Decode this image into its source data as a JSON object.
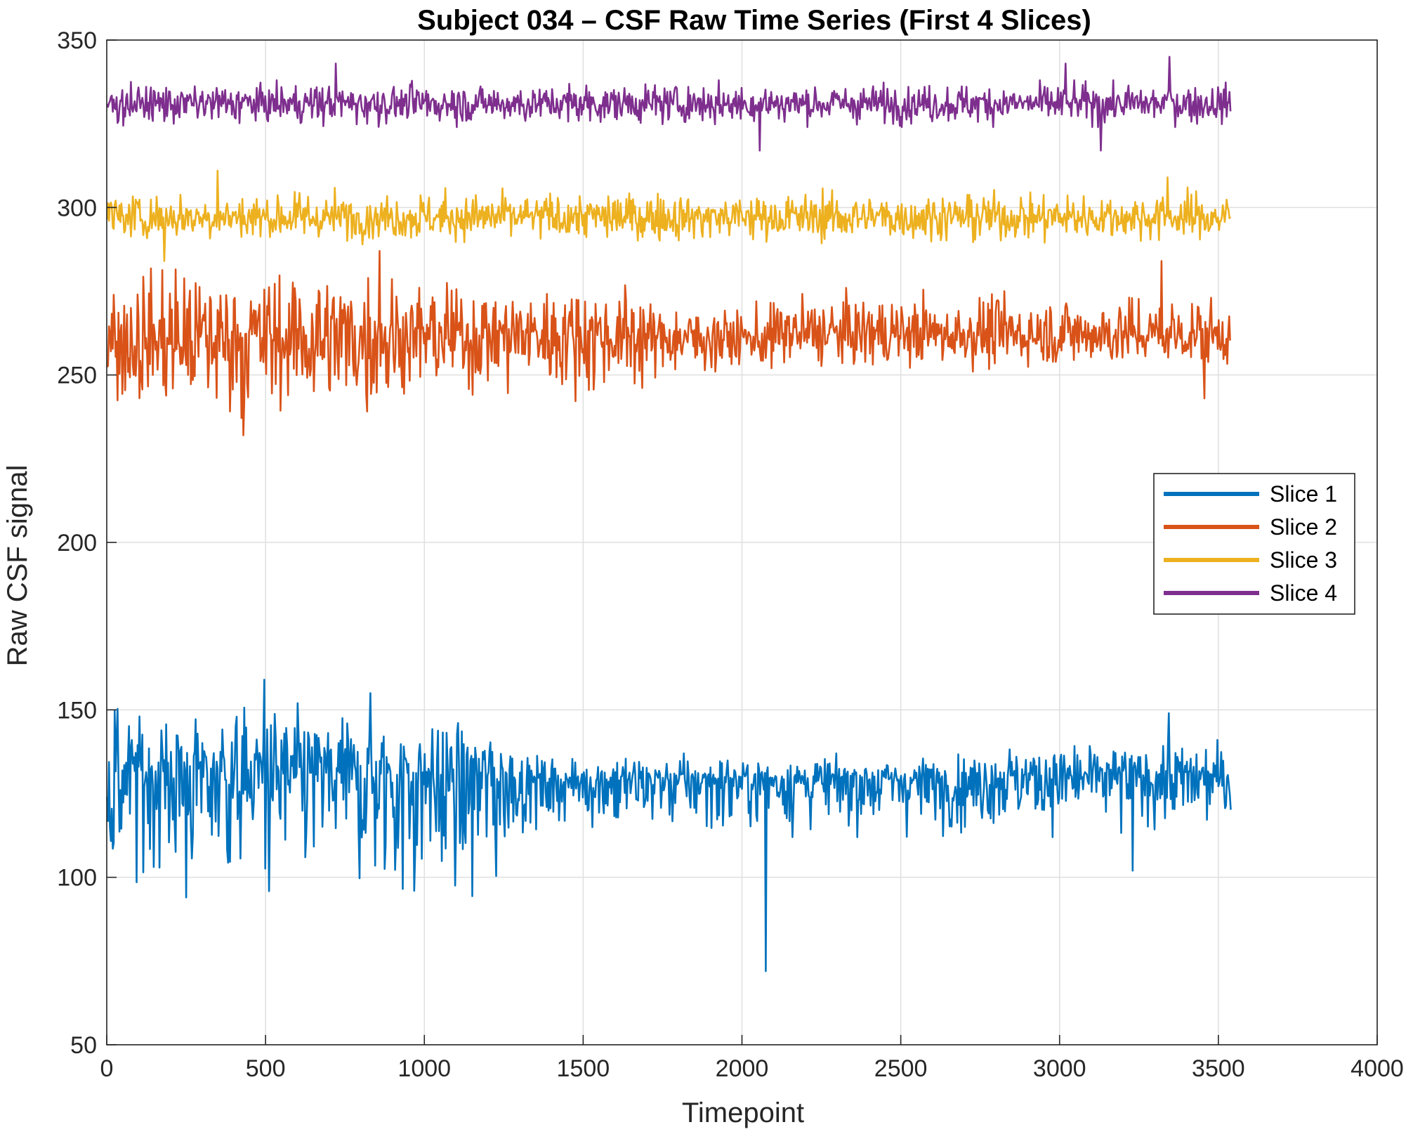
{
  "chart_data": {
    "type": "line",
    "title": "Subject 034 – CSF Raw Time Series (First 4 Slices)",
    "xlabel": "Timepoint",
    "ylabel": "Raw CSF signal",
    "xlim": [
      0,
      4000
    ],
    "ylim": [
      50,
      350
    ],
    "xticks": [
      0,
      500,
      1000,
      1500,
      2000,
      2500,
      3000,
      3500,
      4000
    ],
    "yticks": [
      50,
      100,
      150,
      200,
      250,
      300,
      350
    ],
    "x_range": [
      1,
      3540
    ],
    "grid": true,
    "legend_position": "right",
    "series": [
      {
        "name": "Slice 1",
        "color": "#0072BD",
        "segments": [
          {
            "x0": 1,
            "x1": 800,
            "mean": 131,
            "high": 152,
            "low": 94
          },
          {
            "x0": 800,
            "x1": 1280,
            "mean": 130,
            "high": 148,
            "low": 88
          },
          {
            "x0": 1280,
            "x1": 2750,
            "mean": 129,
            "high": 137,
            "low": 112
          },
          {
            "x0": 2750,
            "x1": 3540,
            "mean": 130,
            "high": 141,
            "low": 112
          }
        ],
        "spikes": [
          {
            "x": 250,
            "y": 94
          },
          {
            "x": 497,
            "y": 159
          },
          {
            "x": 830,
            "y": 155
          },
          {
            "x": 2075,
            "y": 72
          },
          {
            "x": 3230,
            "y": 102
          },
          {
            "x": 3345,
            "y": 149
          }
        ]
      },
      {
        "name": "Slice 2",
        "color": "#D95319",
        "segments": [
          {
            "x0": 1,
            "x1": 900,
            "mean": 261,
            "high": 285,
            "low": 235
          },
          {
            "x0": 900,
            "x1": 1700,
            "mean": 262,
            "high": 279,
            "low": 242
          },
          {
            "x0": 1700,
            "x1": 2100,
            "mean": 261,
            "high": 272,
            "low": 249
          },
          {
            "x0": 2100,
            "x1": 3540,
            "mean": 262,
            "high": 276,
            "low": 251
          }
        ],
        "spikes": [
          {
            "x": 430,
            "y": 232
          },
          {
            "x": 860,
            "y": 287
          },
          {
            "x": 3320,
            "y": 284
          },
          {
            "x": 3455,
            "y": 243
          }
        ]
      },
      {
        "name": "Slice 3",
        "color": "#EDB120",
        "segments": [
          {
            "x0": 1,
            "x1": 3540,
            "mean": 297,
            "high": 306,
            "low": 289
          }
        ],
        "spikes": [
          {
            "x": 350,
            "y": 311
          },
          {
            "x": 180,
            "y": 284
          },
          {
            "x": 3340,
            "y": 309
          }
        ]
      },
      {
        "name": "Slice 4",
        "color": "#7E2F8E",
        "segments": [
          {
            "x0": 1,
            "x1": 3540,
            "mean": 331,
            "high": 338,
            "low": 324
          }
        ],
        "spikes": [
          {
            "x": 720,
            "y": 343
          },
          {
            "x": 2055,
            "y": 317
          },
          {
            "x": 3130,
            "y": 317
          },
          {
            "x": 3345,
            "y": 345
          },
          {
            "x": 3020,
            "y": 343
          }
        ]
      }
    ]
  }
}
